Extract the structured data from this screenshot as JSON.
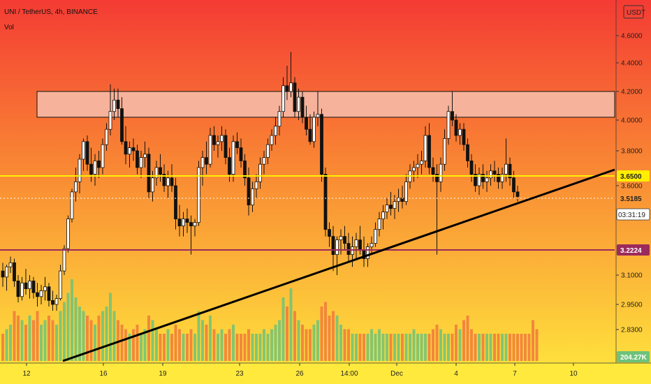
{
  "header": {
    "symbol_line": "UNI / TetherUS, 4h, BINANCE",
    "volume_label": "Vol"
  },
  "currency_badge": "USDT",
  "badges": {
    "resistance": "3.6500",
    "current_price": "3.5185",
    "countdown": "03:31:19",
    "support": "3.2224",
    "volume": "204.27K"
  },
  "colors": {
    "bullish": "#6ec27a",
    "bearish": "#f07a3c",
    "candle": "#111111",
    "trendline": "#000000",
    "resistance_line": "#ffee00",
    "support_line": "#9c2a5c",
    "zone_fill": "#f6b29a",
    "bg_top": "#f43b34",
    "bg_bottom": "#ffe93d"
  },
  "chart_data": {
    "type": "candlestick",
    "symbol": "UNI / TetherUS",
    "interval": "4h",
    "exchange": "BINANCE",
    "y_axis": {
      "range": [
        2.62,
        4.8
      ],
      "ticks": [
        "4.6000",
        "4.4000",
        "4.2000",
        "4.0000",
        "3.8000",
        "3.6000",
        "3.1000",
        "2.9500",
        "2.8300"
      ]
    },
    "x_axis": {
      "ticks": [
        "12",
        "16",
        "19",
        "23",
        "26",
        "14:00",
        "Dec",
        "4",
        "7",
        "10"
      ],
      "tick_bar_index": [
        13,
        34,
        55,
        80,
        100,
        116,
        131,
        152,
        172,
        192
      ]
    },
    "supply_zone": {
      "low": 4.02,
      "high": 4.2
    },
    "resistance_level": 3.65,
    "support_level": 3.2224,
    "current_price": 3.5185,
    "trendline": {
      "from": {
        "bar": 21,
        "price": 2.64
      },
      "to": {
        "bar": 208,
        "price": 3.67
      }
    },
    "candles": [
      [
        3.12,
        3.16,
        3.04,
        3.09
      ],
      [
        3.09,
        3.15,
        3.02,
        3.14
      ],
      [
        3.14,
        3.19,
        3.11,
        3.16
      ],
      [
        3.16,
        3.18,
        3.04,
        3.07
      ],
      [
        3.07,
        3.1,
        2.96,
        2.99
      ],
      [
        2.99,
        3.09,
        2.97,
        3.06
      ],
      [
        3.06,
        3.13,
        3.0,
        3.03
      ],
      [
        3.03,
        3.1,
        2.98,
        3.07
      ],
      [
        3.07,
        3.09,
        2.98,
        3.01
      ],
      [
        3.01,
        3.06,
        2.94,
        2.99
      ],
      [
        2.99,
        3.05,
        2.95,
        3.02
      ],
      [
        3.02,
        3.09,
        2.97,
        3.04
      ],
      [
        3.04,
        3.06,
        2.94,
        2.97
      ],
      [
        2.97,
        3.02,
        2.92,
        2.95
      ],
      [
        2.95,
        3.0,
        2.92,
        2.98
      ],
      [
        2.98,
        3.15,
        2.97,
        3.12
      ],
      [
        3.12,
        3.25,
        3.1,
        3.23
      ],
      [
        3.23,
        3.42,
        3.21,
        3.4
      ],
      [
        3.4,
        3.58,
        3.38,
        3.56
      ],
      [
        3.56,
        3.7,
        3.5,
        3.62
      ],
      [
        3.62,
        3.78,
        3.55,
        3.75
      ],
      [
        3.75,
        3.88,
        3.68,
        3.86
      ],
      [
        3.86,
        3.9,
        3.68,
        3.72
      ],
      [
        3.72,
        3.82,
        3.62,
        3.66
      ],
      [
        3.66,
        3.78,
        3.6,
        3.74
      ],
      [
        3.74,
        3.8,
        3.64,
        3.7
      ],
      [
        3.7,
        3.88,
        3.66,
        3.84
      ],
      [
        3.84,
        3.98,
        3.8,
        3.94
      ],
      [
        3.94,
        4.25,
        3.9,
        4.06
      ],
      [
        4.06,
        4.22,
        4.0,
        4.14
      ],
      [
        4.14,
        4.22,
        4.02,
        4.08
      ],
      [
        4.08,
        4.16,
        3.84,
        3.86
      ],
      [
        3.86,
        3.96,
        3.72,
        3.78
      ],
      [
        3.78,
        3.86,
        3.7,
        3.82
      ],
      [
        3.82,
        3.88,
        3.74,
        3.8
      ],
      [
        3.8,
        3.84,
        3.66,
        3.7
      ],
      [
        3.7,
        3.8,
        3.64,
        3.76
      ],
      [
        3.76,
        3.86,
        3.7,
        3.78
      ],
      [
        3.78,
        3.82,
        3.52,
        3.56
      ],
      [
        3.56,
        3.68,
        3.5,
        3.64
      ],
      [
        3.64,
        3.74,
        3.6,
        3.7
      ],
      [
        3.7,
        3.78,
        3.62,
        3.66
      ],
      [
        3.66,
        3.72,
        3.56,
        3.6
      ],
      [
        3.6,
        3.68,
        3.52,
        3.64
      ],
      [
        3.64,
        3.72,
        3.56,
        3.6
      ],
      [
        3.6,
        3.64,
        3.34,
        3.4
      ],
      [
        3.4,
        3.48,
        3.3,
        3.36
      ],
      [
        3.36,
        3.44,
        3.3,
        3.4
      ],
      [
        3.4,
        3.46,
        3.32,
        3.38
      ],
      [
        3.38,
        3.42,
        3.2,
        3.36
      ],
      [
        3.36,
        3.4,
        3.3,
        3.38
      ],
      [
        3.38,
        3.74,
        3.36,
        3.7
      ],
      [
        3.7,
        3.8,
        3.6,
        3.76
      ],
      [
        3.76,
        3.86,
        3.66,
        3.72
      ],
      [
        3.72,
        3.95,
        3.7,
        3.9
      ],
      [
        3.9,
        3.96,
        3.8,
        3.84
      ],
      [
        3.84,
        3.9,
        3.76,
        3.86
      ],
      [
        3.86,
        3.96,
        3.8,
        3.9
      ],
      [
        3.9,
        3.94,
        3.72,
        3.76
      ],
      [
        3.76,
        3.82,
        3.62,
        3.66
      ],
      [
        3.66,
        3.9,
        3.62,
        3.86
      ],
      [
        3.86,
        3.92,
        3.78,
        3.82
      ],
      [
        3.82,
        3.88,
        3.7,
        3.74
      ],
      [
        3.74,
        3.78,
        3.6,
        3.64
      ],
      [
        3.64,
        3.7,
        3.42,
        3.48
      ],
      [
        3.48,
        3.62,
        3.44,
        3.58
      ],
      [
        3.58,
        3.66,
        3.52,
        3.62
      ],
      [
        3.62,
        3.76,
        3.58,
        3.72
      ],
      [
        3.72,
        3.8,
        3.66,
        3.76
      ],
      [
        3.76,
        3.88,
        3.72,
        3.84
      ],
      [
        3.84,
        3.94,
        3.8,
        3.9
      ],
      [
        3.9,
        4.02,
        3.84,
        3.96
      ],
      [
        3.96,
        4.1,
        3.9,
        4.06
      ],
      [
        4.06,
        4.3,
        4.02,
        4.24
      ],
      [
        4.24,
        4.38,
        4.14,
        4.2
      ],
      [
        4.2,
        4.48,
        4.16,
        4.26
      ],
      [
        4.26,
        4.3,
        4.02,
        4.06
      ],
      [
        4.06,
        4.22,
        4.0,
        4.16
      ],
      [
        4.16,
        4.2,
        3.98,
        4.02
      ],
      [
        4.02,
        4.1,
        3.9,
        3.94
      ],
      [
        3.94,
        4.04,
        3.84,
        3.86
      ],
      [
        3.86,
        4.06,
        3.82,
        4.02
      ],
      [
        4.02,
        4.2,
        3.96,
        4.04
      ],
      [
        4.04,
        4.08,
        3.62,
        3.66
      ],
      [
        3.66,
        3.7,
        3.3,
        3.34
      ],
      [
        3.34,
        3.38,
        3.24,
        3.3
      ],
      [
        3.3,
        3.36,
        3.12,
        3.2
      ],
      [
        3.2,
        3.3,
        3.1,
        3.28
      ],
      [
        3.28,
        3.34,
        3.2,
        3.3
      ],
      [
        3.3,
        3.36,
        3.22,
        3.26
      ],
      [
        3.26,
        3.32,
        3.16,
        3.2
      ],
      [
        3.2,
        3.3,
        3.14,
        3.24
      ],
      [
        3.24,
        3.32,
        3.18,
        3.28
      ],
      [
        3.28,
        3.36,
        3.2,
        3.22
      ],
      [
        3.22,
        3.3,
        3.14,
        3.18
      ],
      [
        3.18,
        3.26,
        3.14,
        3.24
      ],
      [
        3.24,
        3.3,
        3.2,
        3.26
      ],
      [
        3.26,
        3.38,
        3.24,
        3.34
      ],
      [
        3.34,
        3.44,
        3.3,
        3.4
      ],
      [
        3.4,
        3.48,
        3.34,
        3.44
      ],
      [
        3.44,
        3.52,
        3.4,
        3.48
      ],
      [
        3.48,
        3.56,
        3.42,
        3.46
      ],
      [
        3.46,
        3.54,
        3.4,
        3.5
      ],
      [
        3.5,
        3.58,
        3.44,
        3.52
      ],
      [
        3.52,
        3.6,
        3.46,
        3.5
      ],
      [
        3.5,
        3.66,
        3.48,
        3.62
      ],
      [
        3.62,
        3.72,
        3.58,
        3.68
      ],
      [
        3.68,
        3.74,
        3.62,
        3.7
      ],
      [
        3.7,
        3.78,
        3.64,
        3.72
      ],
      [
        3.72,
        3.8,
        3.66,
        3.74
      ],
      [
        3.74,
        3.96,
        3.7,
        3.9
      ],
      [
        3.9,
        3.98,
        3.66,
        3.7
      ],
      [
        3.7,
        3.76,
        3.62,
        3.66
      ],
      [
        3.66,
        3.72,
        3.2,
        3.62
      ],
      [
        3.62,
        3.76,
        3.56,
        3.72
      ],
      [
        3.72,
        3.94,
        3.68,
        3.88
      ],
      [
        3.88,
        4.1,
        3.84,
        4.06
      ],
      [
        4.06,
        4.2,
        3.96,
        4.0
      ],
      [
        4.0,
        4.04,
        3.86,
        3.9
      ],
      [
        3.9,
        3.98,
        3.84,
        3.94
      ],
      [
        3.94,
        3.98,
        3.8,
        3.84
      ],
      [
        3.84,
        3.88,
        3.7,
        3.74
      ],
      [
        3.74,
        3.78,
        3.62,
        3.66
      ],
      [
        3.66,
        3.72,
        3.56,
        3.6
      ],
      [
        3.6,
        3.7,
        3.54,
        3.66
      ],
      [
        3.66,
        3.72,
        3.58,
        3.62
      ],
      [
        3.62,
        3.68,
        3.56,
        3.64
      ],
      [
        3.64,
        3.72,
        3.6,
        3.68
      ],
      [
        3.68,
        3.74,
        3.62,
        3.66
      ],
      [
        3.66,
        3.7,
        3.58,
        3.62
      ],
      [
        3.62,
        3.7,
        3.58,
        3.66
      ],
      [
        3.66,
        3.88,
        3.62,
        3.72
      ],
      [
        3.72,
        3.76,
        3.6,
        3.64
      ],
      [
        3.64,
        3.68,
        3.52,
        3.56
      ],
      [
        3.56,
        3.6,
        3.5,
        3.53
      ]
    ],
    "volumes": [
      0.3,
      0.35,
      0.4,
      0.55,
      0.5,
      0.45,
      0.4,
      0.5,
      0.45,
      0.55,
      0.4,
      0.45,
      0.5,
      0.45,
      0.4,
      0.55,
      0.65,
      0.75,
      0.9,
      0.7,
      0.6,
      0.55,
      0.5,
      0.45,
      0.4,
      0.5,
      0.55,
      0.6,
      0.75,
      0.55,
      0.45,
      0.4,
      0.35,
      0.3,
      0.35,
      0.4,
      0.3,
      0.35,
      0.5,
      0.45,
      0.35,
      0.3,
      0.3,
      0.35,
      0.3,
      0.4,
      0.35,
      0.3,
      0.3,
      0.35,
      0.3,
      0.55,
      0.45,
      0.4,
      0.5,
      0.35,
      0.3,
      0.35,
      0.3,
      0.35,
      0.4,
      0.3,
      0.3,
      0.3,
      0.35,
      0.3,
      0.3,
      0.3,
      0.35,
      0.3,
      0.35,
      0.4,
      0.45,
      0.7,
      0.6,
      0.8,
      0.55,
      0.45,
      0.4,
      0.35,
      0.35,
      0.4,
      0.45,
      0.6,
      0.65,
      0.5,
      0.55,
      0.5,
      0.4,
      0.35,
      0.35,
      0.3,
      0.3,
      0.3,
      0.3,
      0.3,
      0.35,
      0.3,
      0.35,
      0.3,
      0.3,
      0.3,
      0.3,
      0.3,
      0.3,
      0.3,
      0.3,
      0.35,
      0.3,
      0.3,
      0.3,
      0.3,
      0.35,
      0.4,
      0.35,
      0.3,
      0.3,
      0.3,
      0.4,
      0.35,
      0.45,
      0.5,
      0.35,
      0.3,
      0.3,
      0.3,
      0.3,
      0.3,
      0.3,
      0.3,
      0.3,
      0.3,
      0.3,
      0.3,
      0.3,
      0.3,
      0.3,
      0.3,
      0.45,
      0.35
    ]
  }
}
